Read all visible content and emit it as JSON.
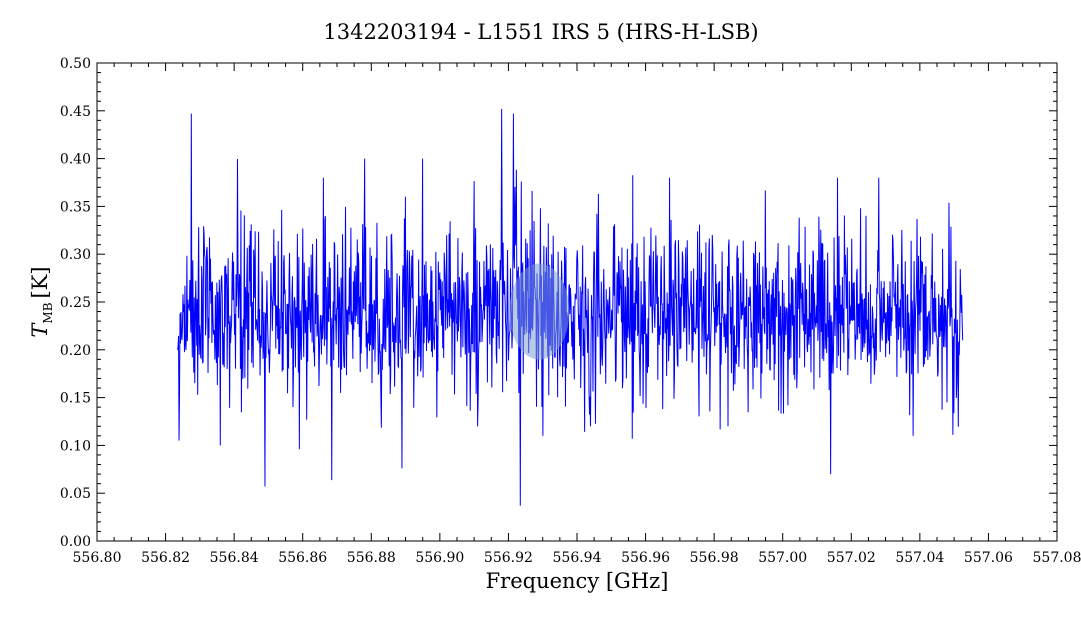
{
  "chart_data": {
    "type": "line",
    "title": "1342203194 - L1551 IRS 5 (HRS-H-LSB)",
    "xlabel": "Frequency [GHz]",
    "ylabel": "T",
    "ylabel_sub": "MB",
    "ylabel_unit": "[K]",
    "xlim": [
      556.8,
      557.08
    ],
    "ylim": [
      0.0,
      0.5
    ],
    "x_ticks": [
      "556.80",
      "556.82",
      "556.84",
      "556.86",
      "556.88",
      "556.90",
      "556.92",
      "556.94",
      "556.96",
      "556.98",
      "557.00",
      "557.02",
      "557.04",
      "557.06",
      "557.08"
    ],
    "y_ticks": [
      "0.00",
      "0.05",
      "0.10",
      "0.15",
      "0.20",
      "0.25",
      "0.30",
      "0.35",
      "0.40",
      "0.45",
      "0.50"
    ],
    "grid": false,
    "series_color": "#0000ff",
    "series": [
      {
        "x_start": 556.8235,
        "x_end": 557.0525,
        "baseline": 0.24,
        "noise_sigma": 0.045,
        "n_channels": 1600,
        "line_feature": {
          "center": 556.922,
          "peak": 0.42
        },
        "samples": [
          [
            556.8235,
            0.2
          ],
          [
            556.824,
            0.105
          ],
          [
            556.8275,
            0.447
          ],
          [
            556.8285,
            0.165
          ],
          [
            556.836,
            0.1
          ],
          [
            556.849,
            0.057
          ],
          [
            556.859,
            0.096
          ],
          [
            556.866,
            0.38
          ],
          [
            556.878,
            0.4
          ],
          [
            556.889,
            0.076
          ],
          [
            556.895,
            0.4
          ],
          [
            556.911,
            0.12
          ],
          [
            556.918,
            0.452
          ],
          [
            556.9215,
            0.447
          ],
          [
            556.9235,
            0.037
          ],
          [
            556.93,
            0.11
          ],
          [
            556.944,
            0.12
          ],
          [
            556.967,
            0.38
          ],
          [
            556.984,
            0.12
          ],
          [
            557.014,
            0.07
          ],
          [
            557.016,
            0.38
          ],
          [
            557.028,
            0.38
          ],
          [
            557.038,
            0.11
          ],
          [
            557.0525,
            0.21
          ]
        ]
      }
    ],
    "highlight_circle": {
      "x": 556.929,
      "y": 0.24,
      "color": "#7f9fcf"
    }
  }
}
